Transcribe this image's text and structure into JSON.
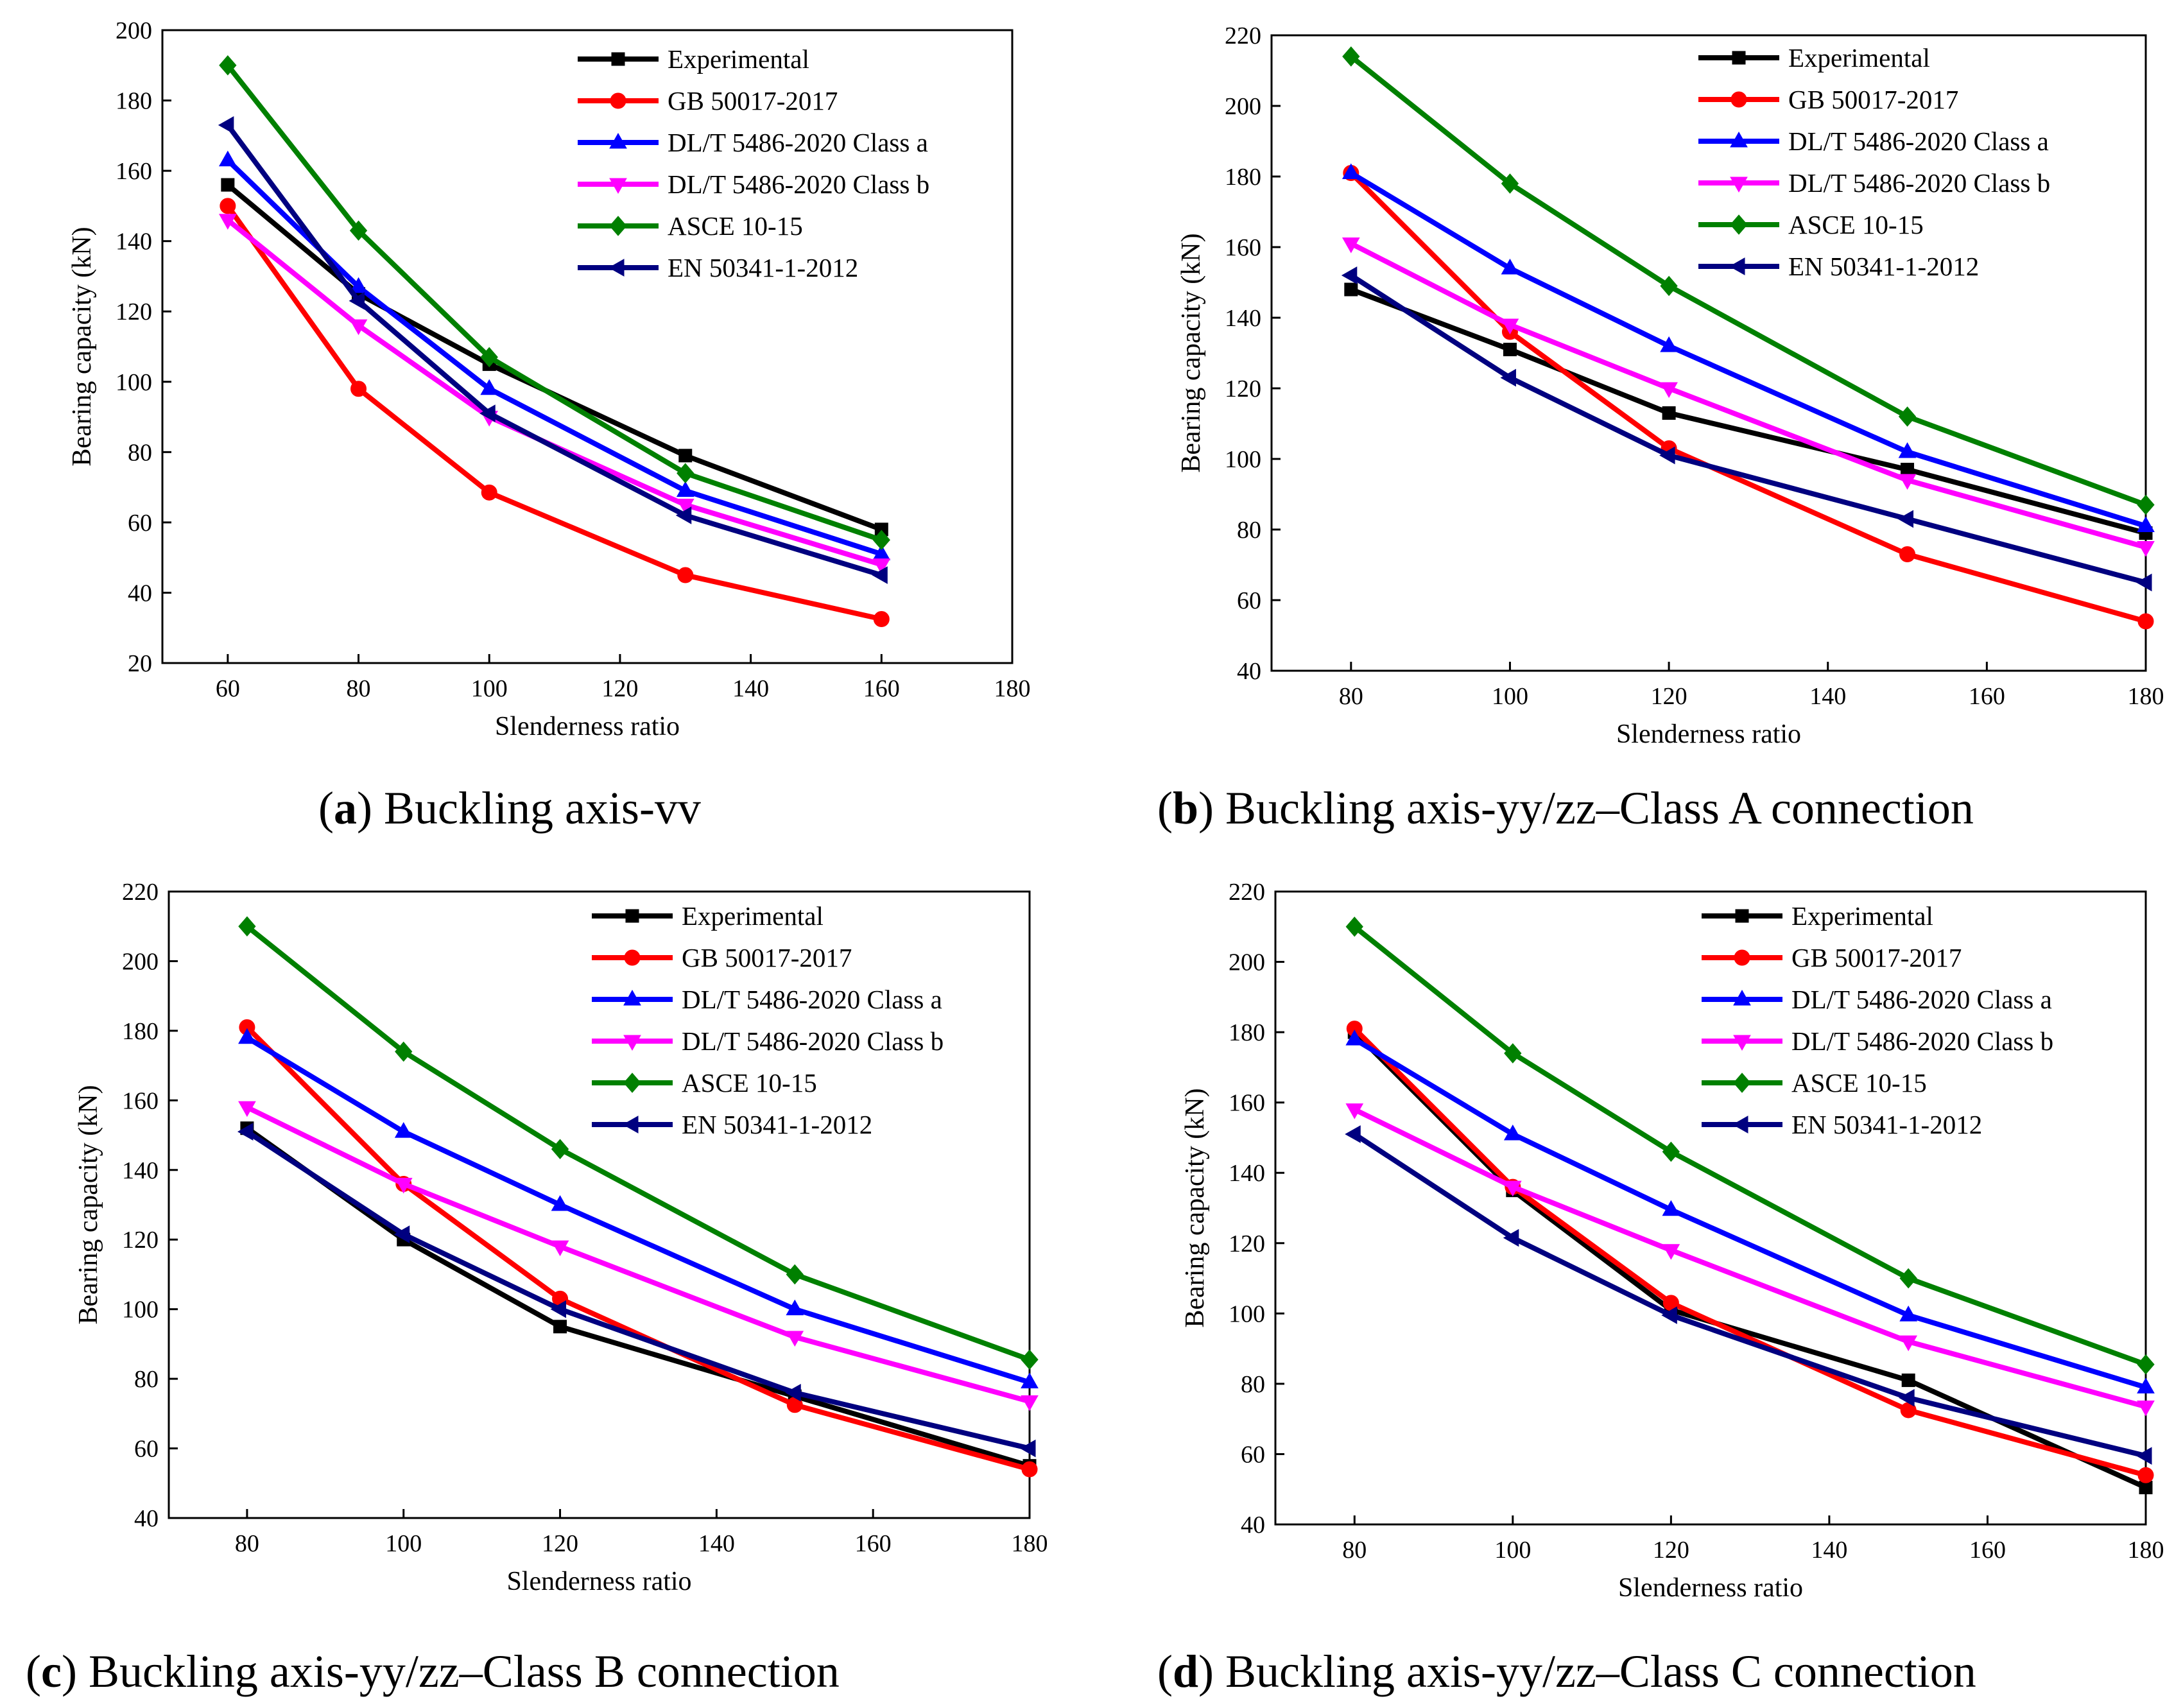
{
  "figure": {
    "series_styles": [
      {
        "name": "Experimental",
        "color": "#000000",
        "marker": "square"
      },
      {
        "name": "GB 50017-2017",
        "color": "#FF0000",
        "marker": "circle"
      },
      {
        "name": "DL/T 5486-2020 Class a",
        "color": "#0000FF",
        "marker": "triangle-up"
      },
      {
        "name": "DL/T 5486-2020 Class b",
        "color": "#FF00FF",
        "marker": "triangle-down"
      },
      {
        "name": "ASCE 10-15",
        "color": "#008000",
        "marker": "diamond"
      },
      {
        "name": "EN 50341-1-2012",
        "color": "#000080",
        "marker": "triangle-left"
      }
    ]
  },
  "chart_data": [
    {
      "type": "line",
      "panel_letter": "a",
      "caption_text": " Buckling axis-vv",
      "xlabel": "Slenderness ratio",
      "ylabel": "Bearing capacity (kN)",
      "xlim": [
        50,
        180
      ],
      "ylim": [
        20,
        200
      ],
      "xticks": [
        60,
        80,
        100,
        120,
        140,
        160,
        180
      ],
      "yticks": [
        20,
        40,
        60,
        80,
        100,
        120,
        140,
        160,
        180,
        200
      ],
      "x": [
        60,
        80,
        100,
        130,
        160
      ],
      "legend_position": "top-right",
      "series": [
        {
          "name": "Experimental",
          "values": [
            156,
            125,
            105,
            79,
            58
          ]
        },
        {
          "name": "GB 50017-2017",
          "values": [
            150,
            98,
            68.5,
            45,
            32.5
          ]
        },
        {
          "name": "DL/T 5486-2020 Class a",
          "values": [
            163,
            127,
            98,
            69,
            51
          ]
        },
        {
          "name": "DL/T 5486-2020 Class b",
          "values": [
            146,
            116,
            90,
            65,
            48
          ]
        },
        {
          "name": "ASCE 10-15",
          "values": [
            190,
            143,
            107,
            74,
            55
          ]
        },
        {
          "name": "EN 50341-1-2012",
          "values": [
            173,
            123,
            91,
            62,
            45
          ]
        }
      ]
    },
    {
      "type": "line",
      "panel_letter": "b",
      "caption_text": " Buckling axis-yy/zz–Class A connection",
      "xlabel": "Slenderness ratio",
      "ylabel": "Bearing capacity (kN)",
      "xlim": [
        70,
        180
      ],
      "ylim": [
        40,
        220
      ],
      "xticks": [
        80,
        100,
        120,
        140,
        160,
        180
      ],
      "yticks": [
        40,
        60,
        80,
        100,
        120,
        140,
        160,
        180,
        200,
        220
      ],
      "x": [
        80,
        100,
        120,
        150,
        180
      ],
      "legend_position": "top-right",
      "series": [
        {
          "name": "Experimental",
          "values": [
            148,
            131,
            113,
            97,
            79
          ]
        },
        {
          "name": "GB 50017-2017",
          "values": [
            181,
            136,
            103,
            73,
            54
          ]
        },
        {
          "name": "DL/T 5486-2020 Class a",
          "values": [
            181,
            154,
            132,
            102,
            81
          ]
        },
        {
          "name": "DL/T 5486-2020 Class b",
          "values": [
            161,
            138,
            120,
            94,
            75
          ]
        },
        {
          "name": "ASCE 10-15",
          "values": [
            214,
            178,
            149,
            112,
            87
          ]
        },
        {
          "name": "EN 50341-1-2012",
          "values": [
            152,
            123,
            101,
            83,
            65
          ]
        }
      ]
    },
    {
      "type": "line",
      "panel_letter": "c",
      "caption_text": " Buckling axis-yy/zz–Class B connection",
      "xlabel": "Slenderness ratio",
      "ylabel": "Bearing capacity (kN)",
      "xlim": [
        70,
        180
      ],
      "ylim": [
        40,
        220
      ],
      "xticks": [
        80,
        100,
        120,
        140,
        160,
        180
      ],
      "yticks": [
        40,
        60,
        80,
        100,
        120,
        140,
        160,
        180,
        200,
        220
      ],
      "x": [
        80,
        100,
        120,
        150,
        180
      ],
      "legend_position": "top-right",
      "series": [
        {
          "name": "Experimental",
          "values": [
            152,
            120,
            95,
            75,
            55
          ]
        },
        {
          "name": "GB 50017-2017",
          "values": [
            181,
            136,
            103,
            72.5,
            54
          ]
        },
        {
          "name": "DL/T 5486-2020 Class a",
          "values": [
            178,
            151,
            130,
            100,
            79
          ]
        },
        {
          "name": "DL/T 5486-2020 Class b",
          "values": [
            158,
            136,
            118,
            92,
            73.5
          ]
        },
        {
          "name": "ASCE 10-15",
          "values": [
            210,
            174,
            146,
            110,
            85.5
          ]
        },
        {
          "name": "EN 50341-1-2012",
          "values": [
            151,
            121.5,
            100,
            76,
            60
          ]
        }
      ]
    },
    {
      "type": "line",
      "panel_letter": "d",
      "caption_text": " Buckling axis-yy/zz–Class C connection",
      "xlabel": "Slenderness ratio",
      "ylabel": "Bearing capacity (kN)",
      "xlim": [
        70,
        180
      ],
      "ylim": [
        40,
        220
      ],
      "xticks": [
        80,
        100,
        120,
        140,
        160,
        180
      ],
      "yticks": [
        40,
        60,
        80,
        100,
        120,
        140,
        160,
        180,
        200,
        220
      ],
      "x": [
        80,
        100,
        120,
        150,
        180
      ],
      "legend_position": "top-right",
      "series": [
        {
          "name": "Experimental",
          "values": [
            180,
            135,
            101,
            81,
            50.5
          ]
        },
        {
          "name": "GB 50017-2017",
          "values": [
            181,
            136,
            103,
            72.5,
            54
          ]
        },
        {
          "name": "DL/T 5486-2020 Class a",
          "values": [
            178,
            151,
            129.5,
            99.5,
            79
          ]
        },
        {
          "name": "DL/T 5486-2020 Class b",
          "values": [
            158,
            136,
            118,
            92,
            73.5
          ]
        },
        {
          "name": "ASCE 10-15",
          "values": [
            210,
            174,
            146,
            110,
            85.5
          ]
        },
        {
          "name": "EN 50341-1-2012",
          "values": [
            151,
            121.5,
            99.5,
            76,
            59.5
          ]
        }
      ]
    }
  ]
}
